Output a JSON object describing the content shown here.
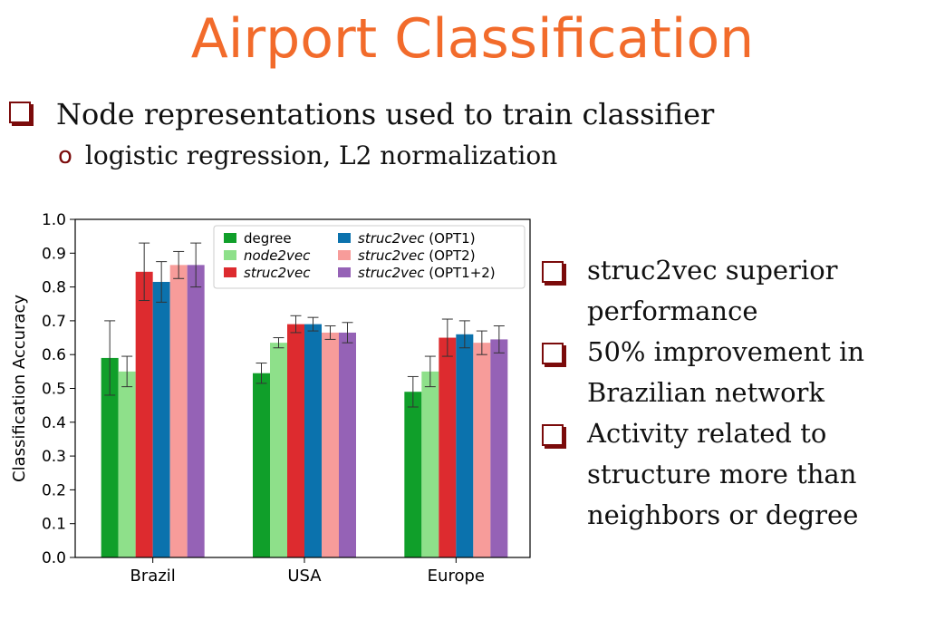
{
  "title": "Airport Classification",
  "bullets": [
    {
      "text": "Node representations used to train classifier",
      "sub": [
        {
          "marker": "o",
          "text": "logistic regression, L2 normalization"
        }
      ]
    }
  ],
  "right_bullets": [
    "struc2vec superior performance",
    "50% improvement in Brazilian network",
    "Activity related to structure more than neighbors or degree"
  ],
  "colors": {
    "title": "#f26b2b",
    "bullet_box": "#7b0b0b"
  },
  "chart_data": {
    "type": "bar",
    "title": "",
    "xlabel": "",
    "ylabel": "Classification Accuracy",
    "ylim": [
      0,
      1.0
    ],
    "yticks": [
      "0.0",
      "0.1",
      "0.2",
      "0.3",
      "0.4",
      "0.5",
      "0.6",
      "0.7",
      "0.8",
      "0.9",
      "1.0"
    ],
    "categories": [
      "Brazil",
      "USA",
      "Europe"
    ],
    "legend_position": "top-right",
    "series": [
      {
        "name": "degree",
        "italic": false,
        "color": "#109f2a",
        "values": [
          0.59,
          0.545,
          0.49
        ],
        "errors": [
          0.11,
          0.03,
          0.045
        ]
      },
      {
        "name": "node2vec",
        "italic": true,
        "color": "#8ee08a",
        "values": [
          0.55,
          0.635,
          0.55
        ],
        "errors": [
          0.045,
          0.015,
          0.045
        ]
      },
      {
        "name": "struc2vec",
        "italic": true,
        "color": "#dd2b2f",
        "values": [
          0.845,
          0.69,
          0.65
        ],
        "errors": [
          0.085,
          0.025,
          0.055
        ]
      },
      {
        "name": "struc2vec",
        "suffix": " (OPT1)",
        "italic": true,
        "color": "#0b72ad",
        "values": [
          0.815,
          0.69,
          0.66
        ],
        "errors": [
          0.06,
          0.02,
          0.04
        ]
      },
      {
        "name": "struc2vec",
        "suffix": " (OPT2)",
        "italic": true,
        "color": "#f79c9a",
        "values": [
          0.865,
          0.665,
          0.635
        ],
        "errors": [
          0.04,
          0.02,
          0.035
        ]
      },
      {
        "name": "struc2vec",
        "suffix": " (OPT1+2)",
        "italic": true,
        "color": "#9562b6",
        "values": [
          0.865,
          0.665,
          0.645
        ],
        "errors": [
          0.065,
          0.03,
          0.04
        ]
      }
    ]
  }
}
